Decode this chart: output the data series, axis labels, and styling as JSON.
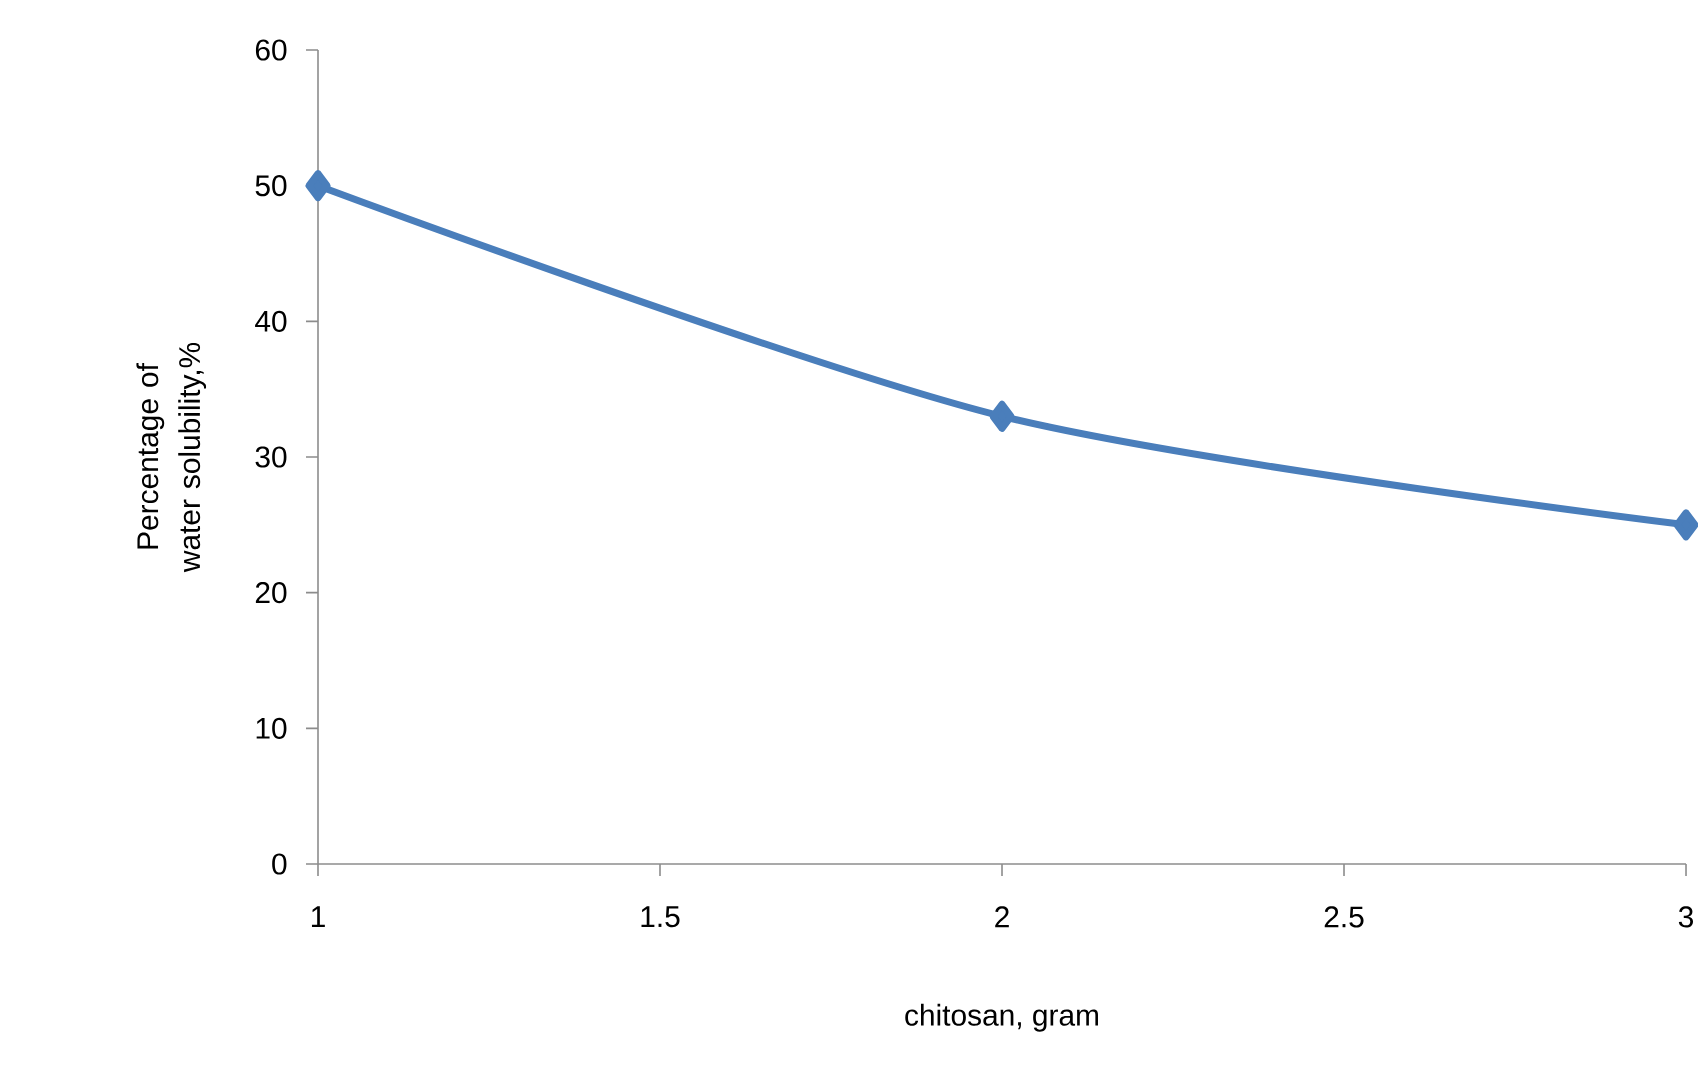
{
  "chart_data": {
    "type": "line",
    "xlabel": "chitosan, gram",
    "ylabel": "Percentage of water solubility,%",
    "x": [
      1,
      2,
      3
    ],
    "series": [
      {
        "color": "#4a7ebb",
        "values": [
          50,
          33,
          25
        ]
      }
    ],
    "xlim": [
      1,
      3
    ],
    "ylim": [
      0,
      60
    ],
    "xticks": [
      1,
      1.5,
      2,
      2.5,
      3
    ],
    "yticks": [
      0,
      10,
      20,
      30,
      40,
      50,
      60
    ],
    "marker": "diamond",
    "line_style": "solid"
  }
}
